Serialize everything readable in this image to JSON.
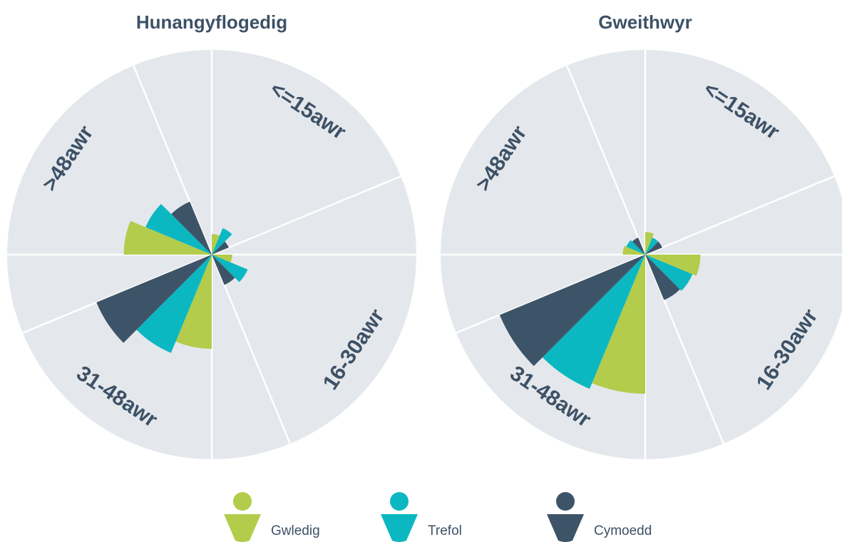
{
  "chart_data": [
    {
      "type": "rose",
      "title": "Hunangyflogedig",
      "categories": [
        "<=15awr",
        "16-30awr",
        "31-48awr",
        ">48awr"
      ],
      "rlim": [
        0,
        100
      ],
      "series": [
        {
          "name": "Gwledig",
          "color": "#b3cc4b",
          "values": [
            10,
            10,
            46,
            43
          ]
        },
        {
          "name": "Trefol",
          "color": "#0bb8c1",
          "values": [
            14,
            19,
            52,
            35
          ]
        },
        {
          "name": "Cymoedd",
          "color": "#3d5468",
          "values": [
            9,
            16,
            61,
            28
          ]
        }
      ]
    },
    {
      "type": "rose",
      "title": "Gweithwyr",
      "categories": [
        "<=15awr",
        "16-30awr",
        "31-48awr",
        ">48awr"
      ],
      "rlim": [
        0,
        100
      ],
      "series": [
        {
          "name": "Gwledig",
          "color": "#b3cc4b",
          "values": [
            11,
            27,
            68,
            11
          ]
        },
        {
          "name": "Trefol",
          "color": "#0bb8c1",
          "values": [
            9,
            25,
            71,
            10
          ]
        },
        {
          "name": "Cymoedd",
          "color": "#3d5468",
          "values": [
            9,
            24,
            77,
            9
          ]
        }
      ]
    }
  ]
}
